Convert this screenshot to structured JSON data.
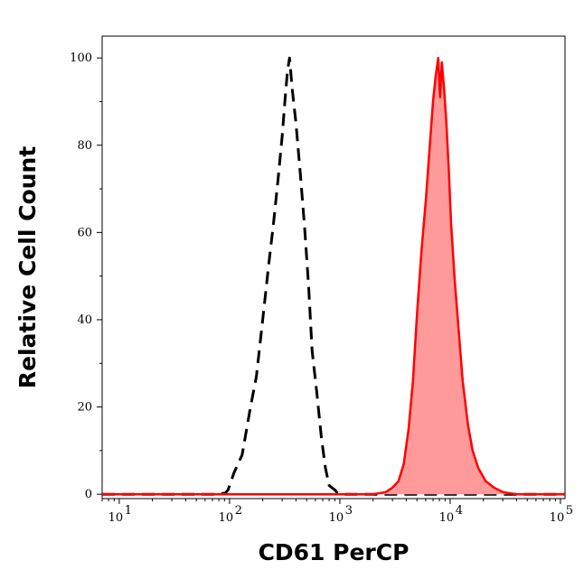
{
  "chart_data": {
    "type": "area",
    "xlabel": "CD61 PerCP",
    "ylabel": "Relative Cell Count",
    "xscale": "log",
    "xlim": [
      7,
      110000
    ],
    "ylim": [
      -1,
      105
    ],
    "grid": false,
    "x_ticks": [
      {
        "value": 10,
        "label": "10",
        "exp": "1"
      },
      {
        "value": 100,
        "label": "10",
        "exp": "2"
      },
      {
        "value": 1000,
        "label": "10",
        "exp": "3"
      },
      {
        "value": 10000,
        "label": "10",
        "exp": "4"
      },
      {
        "value": 100000,
        "label": "10",
        "exp": "5"
      }
    ],
    "y_ticks": [
      0,
      20,
      40,
      60,
      80,
      100
    ],
    "series": [
      {
        "style": "dashed",
        "color": "#000000",
        "fill": "none",
        "x": [
          7,
          80,
          92,
          97,
          110,
          130,
          155,
          175,
          200,
          225,
          250,
          275,
          300,
          320,
          335,
          350,
          370,
          400,
          440,
          480,
          520,
          560,
          620,
          680,
          740,
          800,
          900,
          950,
          1000,
          110000
        ],
        "y": [
          0,
          0,
          0.3,
          1,
          5,
          9,
          20,
          27,
          40,
          52,
          62,
          72,
          82,
          91,
          97,
          100,
          93,
          85,
          73,
          61,
          48,
          33,
          23,
          13,
          6,
          2,
          1,
          0.3,
          0,
          0
        ]
      },
      {
        "style": "solid",
        "color": "#ff0000",
        "fill": "#ff9a9a",
        "x": [
          7,
          2000,
          2600,
          3000,
          3400,
          3800,
          4200,
          4600,
          5000,
          5500,
          6000,
          6500,
          7000,
          7400,
          7800,
          8100,
          8400,
          8800,
          9200,
          9700,
          10200,
          11000,
          12000,
          13000,
          14500,
          16000,
          18000,
          21000,
          25000,
          30000,
          40000,
          110000
        ],
        "y": [
          0,
          0,
          0.5,
          1.5,
          3,
          7,
          15,
          26,
          41,
          56,
          67,
          79,
          90,
          96,
          100,
          91,
          99,
          93,
          86,
          75,
          62,
          49,
          37,
          26,
          16,
          10,
          6,
          3,
          1.5,
          0.5,
          0,
          0
        ]
      }
    ]
  }
}
